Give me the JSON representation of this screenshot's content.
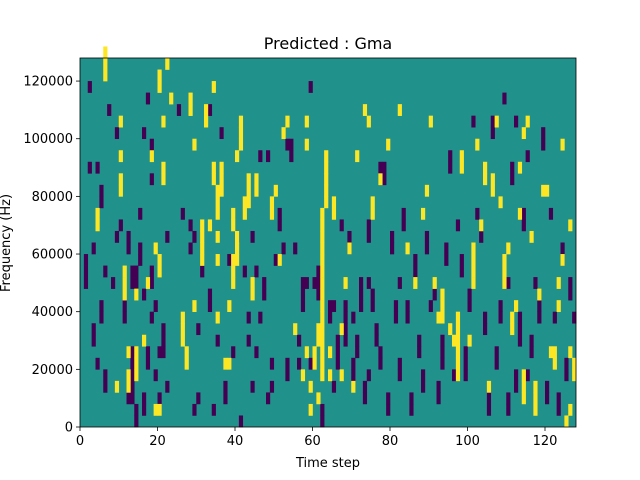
{
  "chart_data": {
    "type": "heatmap",
    "title": "Predicted : Gma",
    "xlabel": "Time step",
    "ylabel": "Frequency (Hz)",
    "xlim": [
      0,
      128
    ],
    "ylim": [
      0,
      128000
    ],
    "x_ticks": [
      "0",
      "20",
      "40",
      "60",
      "80",
      "100",
      "120"
    ],
    "x_tick_values": [
      0,
      20,
      40,
      60,
      80,
      100,
      120
    ],
    "y_ticks": [
      "0",
      "20000",
      "40000",
      "60000",
      "80000",
      "100000",
      "120000"
    ],
    "y_tick_values": [
      0,
      20000,
      40000,
      60000,
      80000,
      100000,
      120000
    ],
    "n_time_steps": 128,
    "n_freq_bins": 32,
    "freq_bin_hz": 4000,
    "colormap": {
      "0": "#440154",
      "0.5": "#21918c",
      "1": "#fde725"
    },
    "background_value": 0.5,
    "yellow_cells": [
      [
        4,
        17
      ],
      [
        4,
        18
      ],
      [
        6,
        30
      ],
      [
        6,
        31
      ],
      [
        6,
        32
      ],
      [
        9,
        3
      ],
      [
        10,
        20
      ],
      [
        10,
        21
      ],
      [
        10,
        23
      ],
      [
        10,
        26
      ],
      [
        11,
        11
      ],
      [
        11,
        12
      ],
      [
        11,
        13
      ],
      [
        12,
        3
      ],
      [
        12,
        4
      ],
      [
        12,
        6
      ],
      [
        14,
        4
      ],
      [
        14,
        5
      ],
      [
        14,
        6
      ],
      [
        14,
        11
      ],
      [
        16,
        7
      ],
      [
        17,
        12
      ],
      [
        18,
        23
      ],
      [
        19,
        1
      ],
      [
        19,
        15
      ],
      [
        20,
        1
      ],
      [
        20,
        13
      ],
      [
        20,
        14
      ],
      [
        20,
        29
      ],
      [
        20,
        30
      ],
      [
        21,
        21
      ],
      [
        21,
        22
      ],
      [
        21,
        26
      ],
      [
        22,
        31
      ],
      [
        23,
        28
      ],
      [
        26,
        7
      ],
      [
        26,
        8
      ],
      [
        26,
        9
      ],
      [
        27,
        5
      ],
      [
        27,
        6
      ],
      [
        28,
        27
      ],
      [
        28,
        28
      ],
      [
        29,
        24
      ],
      [
        29,
        10
      ],
      [
        31,
        14
      ],
      [
        31,
        15
      ],
      [
        31,
        16
      ],
      [
        31,
        17
      ],
      [
        32,
        26
      ],
      [
        32,
        27
      ],
      [
        33,
        17
      ],
      [
        34,
        21
      ],
      [
        34,
        22
      ],
      [
        34,
        29
      ],
      [
        35,
        9
      ],
      [
        35,
        14
      ],
      [
        35,
        16
      ],
      [
        35,
        18
      ],
      [
        35,
        19
      ],
      [
        35,
        20
      ],
      [
        36,
        20
      ],
      [
        36,
        21
      ],
      [
        36,
        22
      ],
      [
        37,
        5
      ],
      [
        38,
        5
      ],
      [
        38,
        10
      ],
      [
        39,
        12
      ],
      [
        39,
        13
      ],
      [
        39,
        14
      ],
      [
        39,
        17
      ],
      [
        39,
        18
      ],
      [
        40,
        14
      ],
      [
        40,
        15
      ],
      [
        40,
        16
      ],
      [
        40,
        23
      ],
      [
        41,
        24
      ],
      [
        41,
        25
      ],
      [
        41,
        26
      ],
      [
        42,
        18
      ],
      [
        42,
        19
      ],
      [
        43,
        19
      ],
      [
        43,
        20
      ],
      [
        43,
        21
      ],
      [
        44,
        11
      ],
      [
        44,
        12
      ],
      [
        45,
        20
      ],
      [
        45,
        21
      ],
      [
        49,
        18
      ],
      [
        49,
        19
      ],
      [
        50,
        20
      ],
      [
        51,
        14
      ],
      [
        52,
        25
      ],
      [
        53,
        26
      ],
      [
        55,
        8
      ],
      [
        57,
        4
      ],
      [
        58,
        6
      ],
      [
        58,
        24
      ],
      [
        58,
        26
      ],
      [
        59,
        1
      ],
      [
        59,
        3
      ],
      [
        60,
        5
      ],
      [
        60,
        6
      ],
      [
        61,
        2
      ],
      [
        61,
        7
      ],
      [
        61,
        8
      ],
      [
        62,
        4
      ],
      [
        62,
        5
      ],
      [
        62,
        6
      ],
      [
        62,
        7
      ],
      [
        62,
        8
      ],
      [
        62,
        9
      ],
      [
        62,
        10
      ],
      [
        62,
        11
      ],
      [
        62,
        12
      ],
      [
        62,
        13
      ],
      [
        62,
        14
      ],
      [
        62,
        15
      ],
      [
        62,
        16
      ],
      [
        62,
        17
      ],
      [
        62,
        18
      ],
      [
        63,
        19
      ],
      [
        63,
        20
      ],
      [
        63,
        21
      ],
      [
        63,
        22
      ],
      [
        63,
        23
      ],
      [
        64,
        4
      ],
      [
        64,
        6
      ],
      [
        65,
        18
      ],
      [
        65,
        19
      ],
      [
        67,
        4
      ],
      [
        67,
        8
      ],
      [
        68,
        12
      ],
      [
        69,
        15
      ],
      [
        70,
        3
      ],
      [
        71,
        23
      ],
      [
        73,
        27
      ],
      [
        74,
        26
      ],
      [
        75,
        18
      ],
      [
        75,
        19
      ],
      [
        77,
        21
      ],
      [
        79,
        24
      ],
      [
        82,
        27
      ],
      [
        84,
        15
      ],
      [
        86,
        12
      ],
      [
        88,
        18
      ],
      [
        89,
        20
      ],
      [
        90,
        26
      ],
      [
        91,
        12
      ],
      [
        92,
        9
      ],
      [
        93,
        9
      ],
      [
        93,
        10
      ],
      [
        93,
        11
      ],
      [
        95,
        8
      ],
      [
        96,
        7
      ],
      [
        97,
        4
      ],
      [
        97,
        5
      ],
      [
        97,
        6
      ],
      [
        97,
        7
      ],
      [
        97,
        8
      ],
      [
        97,
        9
      ],
      [
        98,
        22
      ],
      [
        98,
        23
      ],
      [
        100,
        7
      ],
      [
        101,
        12
      ],
      [
        101,
        13
      ],
      [
        101,
        14
      ],
      [
        101,
        15
      ],
      [
        102,
        24
      ],
      [
        103,
        17
      ],
      [
        104,
        21
      ],
      [
        104,
        22
      ],
      [
        105,
        3
      ],
      [
        106,
        20
      ],
      [
        106,
        21
      ],
      [
        107,
        26
      ],
      [
        108,
        19
      ],
      [
        109,
        12
      ],
      [
        109,
        13
      ],
      [
        109,
        14
      ],
      [
        110,
        15
      ],
      [
        111,
        8
      ],
      [
        111,
        9
      ],
      [
        112,
        10
      ],
      [
        113,
        18
      ],
      [
        113,
        22
      ],
      [
        114,
        2
      ],
      [
        114,
        3
      ],
      [
        114,
        4
      ],
      [
        114,
        25
      ],
      [
        115,
        26
      ],
      [
        116,
        16
      ],
      [
        117,
        1
      ],
      [
        117,
        2
      ],
      [
        117,
        3
      ],
      [
        118,
        11
      ],
      [
        119,
        20
      ],
      [
        120,
        20
      ],
      [
        121,
        6
      ],
      [
        122,
        5
      ],
      [
        122,
        6
      ],
      [
        123,
        10
      ],
      [
        123,
        12
      ],
      [
        124,
        14
      ],
      [
        124,
        24
      ],
      [
        125,
        0
      ],
      [
        126,
        1
      ],
      [
        126,
        6
      ],
      [
        126,
        17
      ],
      [
        127,
        4
      ],
      [
        127,
        5
      ]
    ],
    "purple_cells": [
      [
        1,
        12
      ],
      [
        1,
        13
      ],
      [
        1,
        14
      ],
      [
        2,
        22
      ],
      [
        2,
        29
      ],
      [
        3,
        7
      ],
      [
        3,
        8
      ],
      [
        3,
        15
      ],
      [
        4,
        5
      ],
      [
        4,
        22
      ],
      [
        5,
        9
      ],
      [
        5,
        10
      ],
      [
        5,
        19
      ],
      [
        5,
        20
      ],
      [
        6,
        3
      ],
      [
        6,
        4
      ],
      [
        6,
        13
      ],
      [
        7,
        27
      ],
      [
        8,
        12
      ],
      [
        9,
        16
      ],
      [
        9,
        25
      ],
      [
        10,
        17
      ],
      [
        11,
        9
      ],
      [
        11,
        10
      ],
      [
        12,
        2
      ],
      [
        12,
        15
      ],
      [
        12,
        16
      ],
      [
        13,
        2
      ],
      [
        13,
        3
      ],
      [
        13,
        4
      ],
      [
        13,
        5
      ],
      [
        13,
        6
      ],
      [
        13,
        12
      ],
      [
        13,
        13
      ],
      [
        14,
        0
      ],
      [
        14,
        1
      ],
      [
        14,
        12
      ],
      [
        14,
        13
      ],
      [
        15,
        14
      ],
      [
        15,
        15
      ],
      [
        15,
        18
      ],
      [
        16,
        1
      ],
      [
        16,
        2
      ],
      [
        16,
        11
      ],
      [
        16,
        25
      ],
      [
        17,
        5
      ],
      [
        17,
        6
      ],
      [
        17,
        28
      ],
      [
        18,
        9
      ],
      [
        18,
        12
      ],
      [
        18,
        13
      ],
      [
        18,
        21
      ],
      [
        18,
        24
      ],
      [
        19,
        4
      ],
      [
        19,
        10
      ],
      [
        20,
        2
      ],
      [
        20,
        6
      ],
      [
        21,
        6
      ],
      [
        21,
        7
      ],
      [
        21,
        8
      ],
      [
        22,
        3
      ],
      [
        22,
        16
      ],
      [
        25,
        27
      ],
      [
        26,
        18
      ],
      [
        28,
        15
      ],
      [
        28,
        17
      ],
      [
        29,
        1
      ],
      [
        29,
        16
      ],
      [
        30,
        2
      ],
      [
        30,
        8
      ],
      [
        31,
        13
      ],
      [
        33,
        10
      ],
      [
        33,
        11
      ],
      [
        33,
        27
      ],
      [
        34,
        1
      ],
      [
        35,
        7
      ],
      [
        36,
        25
      ],
      [
        37,
        2
      ],
      [
        37,
        3
      ],
      [
        38,
        14
      ],
      [
        39,
        6
      ],
      [
        40,
        16
      ],
      [
        41,
        0
      ],
      [
        42,
        13
      ],
      [
        43,
        7
      ],
      [
        43,
        9
      ],
      [
        44,
        3
      ],
      [
        44,
        16
      ],
      [
        45,
        6
      ],
      [
        45,
        13
      ],
      [
        46,
        9
      ],
      [
        46,
        23
      ],
      [
        47,
        11
      ],
      [
        47,
        12
      ],
      [
        48,
        2
      ],
      [
        48,
        23
      ],
      [
        49,
        3
      ],
      [
        49,
        5
      ],
      [
        50,
        14
      ],
      [
        51,
        17
      ],
      [
        51,
        18
      ],
      [
        52,
        15
      ],
      [
        53,
        4
      ],
      [
        53,
        5
      ],
      [
        53,
        24
      ],
      [
        54,
        23
      ],
      [
        54,
        24
      ],
      [
        55,
        15
      ],
      [
        56,
        5
      ],
      [
        56,
        7
      ],
      [
        57,
        10
      ],
      [
        57,
        11
      ],
      [
        57,
        12
      ],
      [
        58,
        12
      ],
      [
        59,
        5
      ],
      [
        59,
        29
      ],
      [
        60,
        12
      ],
      [
        61,
        11
      ],
      [
        61,
        12
      ],
      [
        61,
        13
      ],
      [
        62,
        0
      ],
      [
        62,
        1
      ],
      [
        64,
        9
      ],
      [
        64,
        10
      ],
      [
        65,
        3
      ],
      [
        65,
        10
      ],
      [
        66,
        5
      ],
      [
        66,
        6
      ],
      [
        66,
        7
      ],
      [
        67,
        17
      ],
      [
        68,
        7
      ],
      [
        68,
        8
      ],
      [
        68,
        9
      ],
      [
        68,
        10
      ],
      [
        69,
        15
      ],
      [
        69,
        16
      ],
      [
        70,
        4
      ],
      [
        70,
        5
      ],
      [
        70,
        9
      ],
      [
        71,
        6
      ],
      [
        71,
        7
      ],
      [
        72,
        10
      ],
      [
        72,
        11
      ],
      [
        72,
        12
      ],
      [
        73,
        2
      ],
      [
        73,
        3
      ],
      [
        74,
        4
      ],
      [
        74,
        12
      ],
      [
        74,
        16
      ],
      [
        74,
        17
      ],
      [
        75,
        10
      ],
      [
        75,
        11
      ],
      [
        76,
        7
      ],
      [
        76,
        8
      ],
      [
        77,
        5
      ],
      [
        77,
        6
      ],
      [
        77,
        22
      ],
      [
        78,
        21
      ],
      [
        78,
        22
      ],
      [
        79,
        1
      ],
      [
        79,
        2
      ],
      [
        80,
        15
      ],
      [
        80,
        16
      ],
      [
        81,
        9
      ],
      [
        81,
        10
      ],
      [
        82,
        4
      ],
      [
        82,
        5
      ],
      [
        82,
        12
      ],
      [
        83,
        17
      ],
      [
        83,
        18
      ],
      [
        84,
        9
      ],
      [
        84,
        10
      ],
      [
        85,
        1
      ],
      [
        85,
        2
      ],
      [
        86,
        13
      ],
      [
        86,
        14
      ],
      [
        87,
        6
      ],
      [
        87,
        7
      ],
      [
        88,
        3
      ],
      [
        88,
        4
      ],
      [
        89,
        15
      ],
      [
        89,
        16
      ],
      [
        90,
        10
      ],
      [
        91,
        11
      ],
      [
        92,
        2
      ],
      [
        92,
        3
      ],
      [
        93,
        5
      ],
      [
        93,
        6
      ],
      [
        93,
        7
      ],
      [
        94,
        14
      ],
      [
        94,
        15
      ],
      [
        95,
        22
      ],
      [
        95,
        23
      ],
      [
        96,
        4
      ],
      [
        97,
        17
      ],
      [
        98,
        13
      ],
      [
        98,
        14
      ],
      [
        99,
        4
      ],
      [
        99,
        5
      ],
      [
        99,
        6
      ],
      [
        100,
        10
      ],
      [
        100,
        11
      ],
      [
        101,
        26
      ],
      [
        102,
        18
      ],
      [
        103,
        16
      ],
      [
        104,
        8
      ],
      [
        104,
        9
      ],
      [
        105,
        1
      ],
      [
        105,
        2
      ],
      [
        106,
        25
      ],
      [
        106,
        26
      ],
      [
        107,
        5
      ],
      [
        107,
        6
      ],
      [
        108,
        9
      ],
      [
        108,
        10
      ],
      [
        109,
        28
      ],
      [
        110,
        1
      ],
      [
        110,
        2
      ],
      [
        110,
        12
      ],
      [
        111,
        21
      ],
      [
        111,
        22
      ],
      [
        112,
        3
      ],
      [
        112,
        4
      ],
      [
        112,
        26
      ],
      [
        113,
        7
      ],
      [
        113,
        8
      ],
      [
        113,
        9
      ],
      [
        114,
        17
      ],
      [
        114,
        18
      ],
      [
        115,
        4
      ],
      [
        115,
        23
      ],
      [
        116,
        6
      ],
      [
        116,
        7
      ],
      [
        117,
        12
      ],
      [
        118,
        9
      ],
      [
        118,
        10
      ],
      [
        119,
        24
      ],
      [
        119,
        25
      ],
      [
        120,
        2
      ],
      [
        120,
        3
      ],
      [
        121,
        18
      ],
      [
        122,
        9
      ],
      [
        123,
        1
      ],
      [
        123,
        2
      ],
      [
        124,
        14
      ],
      [
        124,
        15
      ],
      [
        125,
        4
      ],
      [
        125,
        5
      ],
      [
        126,
        11
      ],
      [
        126,
        12
      ],
      [
        127,
        9
      ]
    ]
  }
}
